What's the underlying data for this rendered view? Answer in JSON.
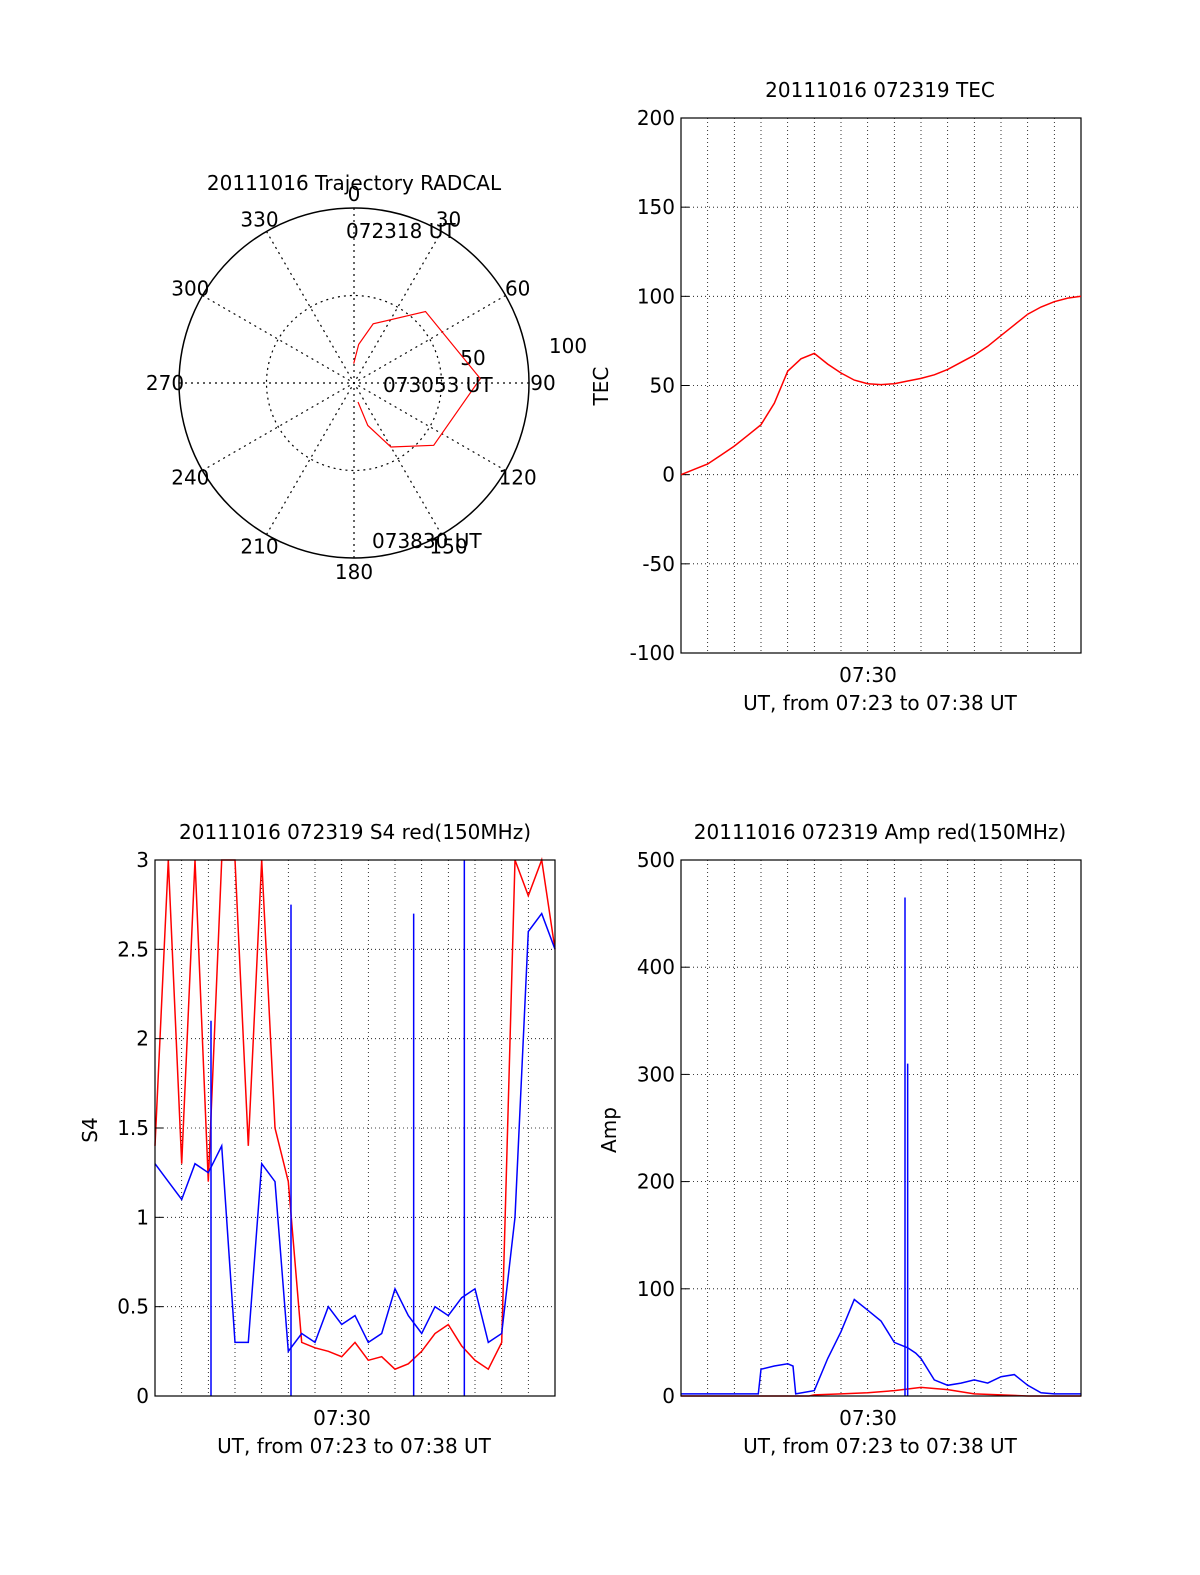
{
  "colors": {
    "red": "#ff0000",
    "blue": "#0000ff",
    "axis": "#000000",
    "grid": "#000000"
  },
  "chart_data": [
    {
      "id": "polar",
      "type": "scatter",
      "projection": "polar",
      "title": "20111016 Trajectory RADCAL",
      "azimuth_labels": [
        "0",
        "30",
        "60",
        "90",
        "120",
        "150",
        "180",
        "210",
        "240",
        "270",
        "300",
        "330"
      ],
      "radial_labels": [
        "50",
        "100"
      ],
      "rlim": [
        0,
        90
      ],
      "grid": true,
      "series": [
        {
          "color": "red",
          "points": [
            {
              "az": 359,
              "el": 80
            },
            {
              "az": 7,
              "el": 70
            },
            {
              "az": 18,
              "el": 58
            },
            {
              "az": 45,
              "el": 38
            },
            {
              "az": 88,
              "el": 25
            },
            {
              "az": 128,
              "el": 38
            },
            {
              "az": 150,
              "el": 52
            },
            {
              "az": 162,
              "el": 67
            },
            {
              "az": 168,
              "el": 80
            }
          ]
        }
      ],
      "annotations": [
        {
          "text": "072318 UT",
          "az": 359,
          "el": 80
        },
        {
          "text": "073053 UT",
          "az": 88,
          "el": 25
        },
        {
          "text": "073830 UT",
          "az": 168,
          "el": 80
        }
      ]
    },
    {
      "id": "tec",
      "type": "line",
      "title": "20111016 072319 TEC",
      "ylabel": "TEC",
      "xlabel": "UT, from 07:23 to 07:38 UT",
      "xtick_label": "07:30",
      "xlim": [
        0,
        15
      ],
      "ylim": [
        -100,
        200
      ],
      "yticks": [
        "-100",
        "-50",
        "0",
        "50",
        "100",
        "150",
        "200"
      ],
      "grid": true,
      "series": [
        {
          "color": "red",
          "x": [
            0,
            0.5,
            1.0,
            1.5,
            2.0,
            2.5,
            3.0,
            3.5,
            4.0,
            4.5,
            5.0,
            5.5,
            6.0,
            6.5,
            7.0,
            7.5,
            8.0,
            8.5,
            9.0,
            9.5,
            10.0,
            10.5,
            11.0,
            11.5,
            12.0,
            12.5,
            13.0,
            13.5,
            14.0,
            14.5,
            15.0
          ],
          "y": [
            0,
            3,
            6,
            11,
            16,
            22,
            28,
            40,
            58,
            65,
            68,
            62,
            57,
            53,
            51,
            50.5,
            51,
            52.5,
            54,
            56,
            59,
            63,
            67,
            72,
            78,
            84,
            90,
            94,
            97,
            99,
            100
          ]
        }
      ]
    },
    {
      "id": "s4",
      "type": "line",
      "title": "20111016 072319 S4 red(150MHz)",
      "ylabel": "S4",
      "xlabel": "UT, from 07:23 to 07:38 UT",
      "xtick_label": "07:30",
      "xlim": [
        0,
        15
      ],
      "ylim": [
        0,
        3
      ],
      "yticks": [
        "0",
        "0.5",
        "1",
        "1.5",
        "2",
        "2.5",
        "3"
      ],
      "grid": true,
      "series": [
        {
          "color": "red",
          "x": [
            0,
            0.5,
            1.0,
            1.5,
            2.0,
            2.5,
            3.0,
            3.5,
            4.0,
            4.5,
            5.0,
            5.5,
            6.0,
            6.5,
            7.0,
            7.5,
            8.0,
            8.5,
            9.0,
            9.5,
            10.0,
            10.5,
            11.0,
            11.5,
            12.0,
            12.5,
            13.0,
            13.5,
            14.0,
            14.5,
            15.0
          ],
          "y": [
            1.4,
            3,
            1.3,
            3,
            1.2,
            3,
            3,
            1.4,
            3,
            1.5,
            1.2,
            0.3,
            0.27,
            0.25,
            0.22,
            0.3,
            0.2,
            0.22,
            0.15,
            0.18,
            0.25,
            0.35,
            0.4,
            0.28,
            0.2,
            0.15,
            0.3,
            3,
            2.8,
            3,
            2.5
          ]
        },
        {
          "color": "blue",
          "x": [
            0,
            0.5,
            1.0,
            1.5,
            2.0,
            2.5,
            3.0,
            3.5,
            4.0,
            4.5,
            5.0,
            5.5,
            6.0,
            6.5,
            7.0,
            7.5,
            8.0,
            8.5,
            9.0,
            9.5,
            10.0,
            10.5,
            11.0,
            11.5,
            12.0,
            12.5,
            13.0,
            13.5,
            14.0,
            14.5,
            15.0
          ],
          "y": [
            1.3,
            1.2,
            1.1,
            1.3,
            1.25,
            1.4,
            0.3,
            0.3,
            1.3,
            1.2,
            0.25,
            0.35,
            0.3,
            0.5,
            0.4,
            0.45,
            0.3,
            0.35,
            0.6,
            0.45,
            0.35,
            0.5,
            0.45,
            0.55,
            0.6,
            0.3,
            0.35,
            1.0,
            2.6,
            2.7,
            2.5
          ]
        }
      ],
      "spikes": [
        {
          "series": "blue",
          "x": 9.7,
          "y": 2.7
        },
        {
          "series": "blue",
          "x": 11.6,
          "y": 3.0
        },
        {
          "series": "blue",
          "x": 5.1,
          "y": 2.75
        },
        {
          "series": "blue",
          "x": 2.1,
          "y": 2.1
        }
      ]
    },
    {
      "id": "amp",
      "type": "line",
      "title": "20111016 072319 Amp red(150MHz)",
      "ylabel": "Amp",
      "xlabel": "UT, from 07:23 to 07:38 UT",
      "xtick_label": "07:30",
      "xlim": [
        0,
        15
      ],
      "ylim": [
        0,
        500
      ],
      "yticks": [
        "0",
        "100",
        "200",
        "300",
        "400",
        "500"
      ],
      "grid": true,
      "series": [
        {
          "color": "red",
          "x": [
            0,
            1,
            2,
            3,
            4,
            4.8,
            5.0,
            6.0,
            7.0,
            8.0,
            9.0,
            10.0,
            11.0,
            12.0,
            13.0,
            14.0,
            15.0
          ],
          "y": [
            0,
            0,
            0,
            0,
            0,
            0,
            1,
            2,
            3,
            5,
            8,
            6,
            2,
            1,
            0,
            0,
            0
          ]
        },
        {
          "color": "blue",
          "x": [
            0,
            1,
            2,
            2.9,
            3.0,
            3.5,
            4.0,
            4.2,
            4.3,
            5.0,
            5.5,
            6.0,
            6.5,
            7.0,
            7.5,
            8.0,
            8.5,
            8.8,
            9.0,
            9.5,
            10.0,
            10.5,
            11.0,
            11.5,
            12.0,
            12.5,
            13.0,
            13.5,
            14.0,
            15.0
          ],
          "y": [
            2,
            2,
            2,
            2,
            25,
            28,
            30,
            28,
            2,
            5,
            35,
            60,
            90,
            80,
            70,
            50,
            45,
            40,
            35,
            15,
            10,
            12,
            15,
            12,
            18,
            20,
            10,
            3,
            2,
            2
          ]
        }
      ],
      "spikes": [
        {
          "series": "blue",
          "x": 8.4,
          "y": 465
        },
        {
          "series": "blue",
          "x": 8.5,
          "y": 310
        }
      ]
    }
  ]
}
